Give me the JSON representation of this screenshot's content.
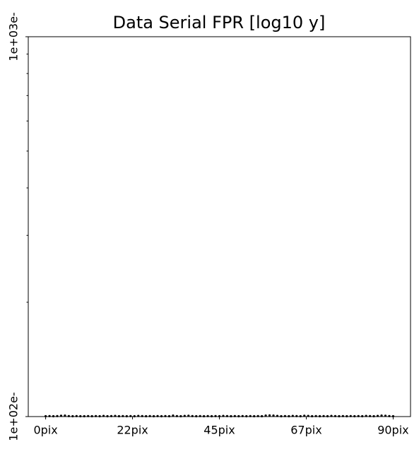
{
  "chart_data": {
    "type": "scatter",
    "title": "Data Serial FPR [log10 y]",
    "x": [
      0,
      1,
      2,
      3,
      4,
      5,
      6,
      7,
      8,
      9,
      10,
      11,
      12,
      13,
      14,
      15,
      16,
      17,
      18,
      19,
      20,
      21,
      22,
      23,
      24,
      25,
      26,
      27,
      28,
      29,
      30,
      31,
      32,
      33,
      34,
      35,
      36,
      37,
      38,
      39,
      40,
      41,
      42,
      43,
      44,
      45,
      46,
      47,
      48,
      49,
      50,
      51,
      52,
      53,
      54,
      55,
      56,
      57,
      58,
      59,
      60,
      61,
      62,
      63,
      64,
      65,
      66,
      67,
      68,
      69,
      70,
      71,
      72,
      73,
      74,
      75,
      76,
      77,
      78,
      79,
      80,
      81,
      82,
      83,
      84,
      85,
      86,
      87,
      88,
      89,
      90
    ],
    "values": [
      100.2,
      100.3,
      100.2,
      100.3,
      100.5,
      100.6,
      100.3,
      100.2,
      100.3,
      100.2,
      100.2,
      100.3,
      100.2,
      100.3,
      100.2,
      100.4,
      100.2,
      100.3,
      100.4,
      100.2,
      100.3,
      100.2,
      100.3,
      100.2,
      100.4,
      100.3,
      100.2,
      100.3,
      100.2,
      100.3,
      100.2,
      100.3,
      100.2,
      100.6,
      100.3,
      100.2,
      100.4,
      100.5,
      100.3,
      100.2,
      100.3,
      100.2,
      100.3,
      100.2,
      100.3,
      100.2,
      100.4,
      100.3,
      100.2,
      100.3,
      100.2,
      100.3,
      100.2,
      100.3,
      100.2,
      100.3,
      100.2,
      100.6,
      100.7,
      100.6,
      100.4,
      100.2,
      100.3,
      100.2,
      100.4,
      100.3,
      100.2,
      100.5,
      100.4,
      100.2,
      100.3,
      100.2,
      100.3,
      100.2,
      100.4,
      100.3,
      100.2,
      100.3,
      100.2,
      100.3,
      100.2,
      100.3,
      100.2,
      100.4,
      100.3,
      100.2,
      100.4,
      100.6,
      100.5,
      100.3,
      100.2
    ],
    "color": "#000000",
    "xlim": [
      -4.5,
      94.5
    ],
    "xticks": [
      {
        "value": 0,
        "label": "0pix"
      },
      {
        "value": 22.5,
        "label": "22pix"
      },
      {
        "value": 45,
        "label": "45pix"
      },
      {
        "value": 67.5,
        "label": "67pix"
      },
      {
        "value": 90,
        "label": "90pix"
      }
    ],
    "ylim": [
      100,
      1000
    ],
    "yscale": "log",
    "yticks": [
      {
        "value": 100,
        "label": "1e+02e-"
      },
      {
        "value": 1000,
        "label": "1e+03e-"
      }
    ],
    "yminorticks": [
      200,
      300,
      400,
      500,
      600,
      700,
      800,
      900
    ],
    "grid": false
  }
}
